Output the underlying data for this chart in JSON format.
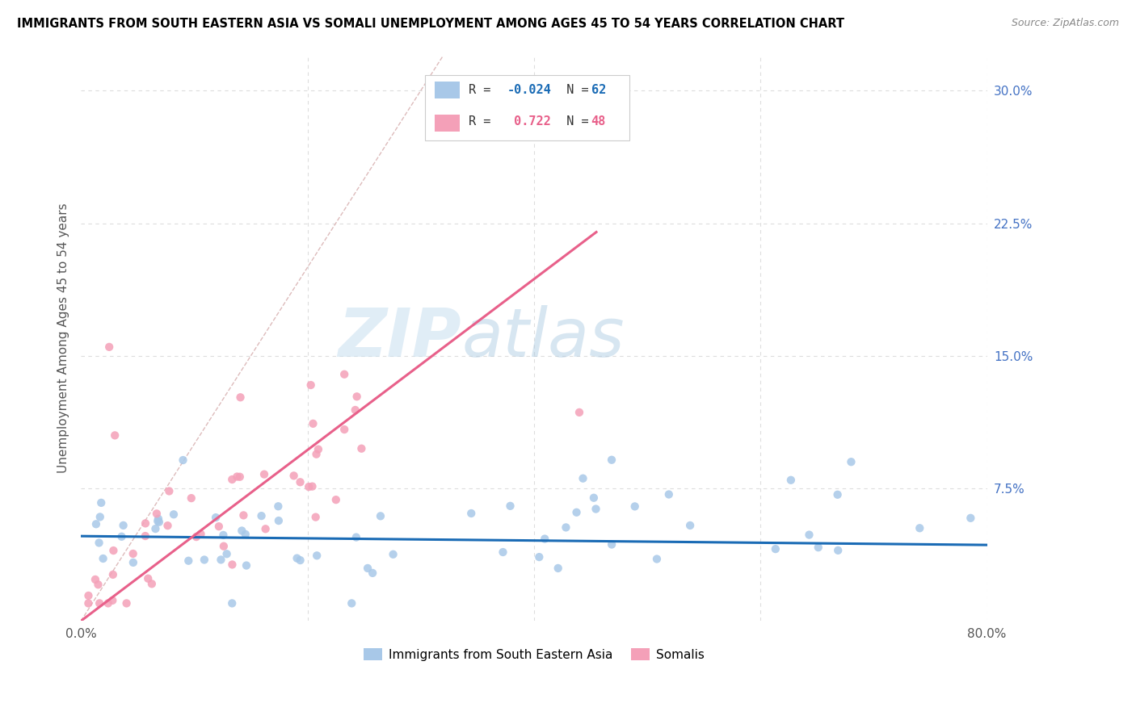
{
  "title": "IMMIGRANTS FROM SOUTH EASTERN ASIA VS SOMALI UNEMPLOYMENT AMONG AGES 45 TO 54 YEARS CORRELATION CHART",
  "source": "Source: ZipAtlas.com",
  "ylabel": "Unemployment Among Ages 45 to 54 years",
  "xlim": [
    0.0,
    0.8
  ],
  "ylim": [
    0.0,
    0.32
  ],
  "xticks": [
    0.0,
    0.2,
    0.4,
    0.6,
    0.8
  ],
  "xticklabels": [
    "0.0%",
    "",
    "",
    "",
    "80.0%"
  ],
  "yticks": [
    0.0,
    0.075,
    0.15,
    0.225,
    0.3
  ],
  "yticklabels": [
    "",
    "7.5%",
    "15.0%",
    "22.5%",
    "30.0%"
  ],
  "color_blue": "#a8c8e8",
  "color_pink": "#f4a0b8",
  "color_blue_line": "#1a6bb5",
  "color_pink_line": "#e8608a",
  "color_diag": "#cccccc",
  "watermark_zip": "ZIP",
  "watermark_atlas": "atlas",
  "legend_label1": "Immigrants from South Eastern Asia",
  "legend_label2": "Somalis",
  "blue_line_x": [
    0.0,
    0.8
  ],
  "blue_line_y": [
    0.048,
    0.043
  ],
  "pink_line_x": [
    0.0,
    0.455
  ],
  "pink_line_y": [
    0.0,
    0.22
  ],
  "diag_line_x": [
    0.0,
    0.32
  ],
  "diag_line_y": [
    0.0,
    0.32
  ],
  "grid_color": "#dddddd",
  "yaxis_label_color": "#4472c4",
  "seed_blue": 17,
  "seed_pink": 99
}
